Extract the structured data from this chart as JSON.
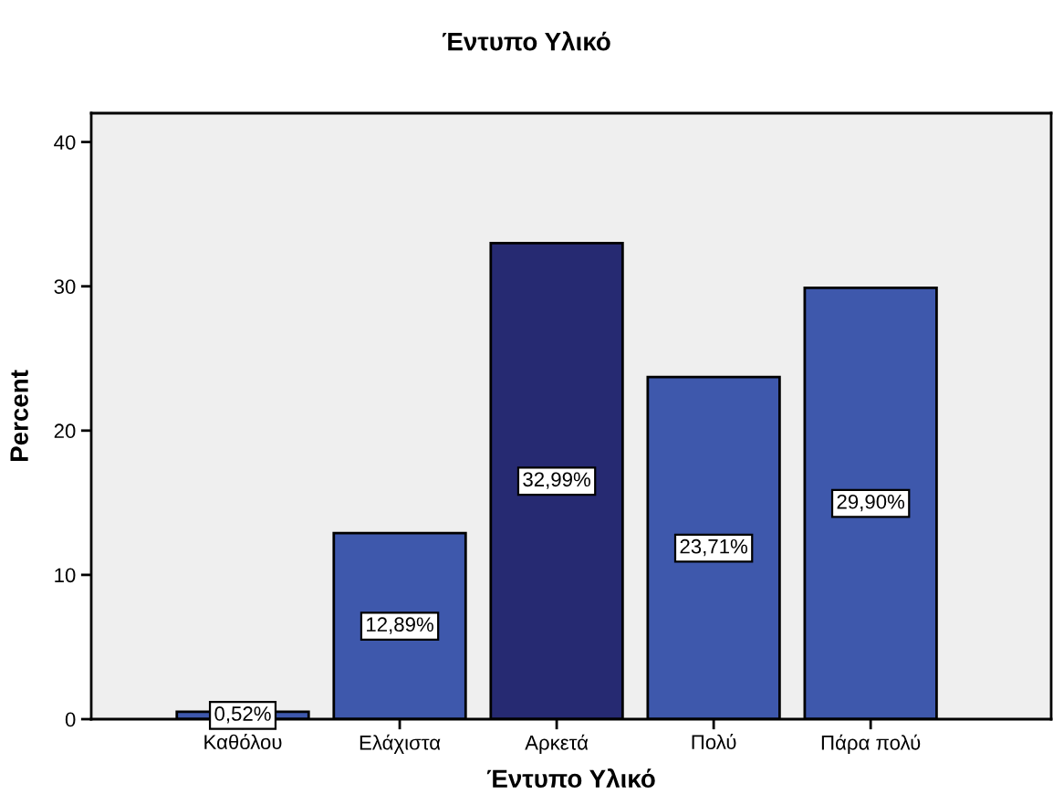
{
  "chart_data": {
    "type": "bar",
    "title": "Έντυπο Υλικό",
    "xlabel": "Έντυπο Υλικό",
    "ylabel": "Percent",
    "categories": [
      "Καθόλου",
      "Ελάχιστα",
      "Αρκετά",
      "Πολύ",
      "Πάρα πολύ"
    ],
    "values": [
      0.52,
      12.89,
      32.99,
      23.71,
      29.9
    ],
    "value_labels": [
      "0,52%",
      "12,89%",
      "32,99%",
      "23,71%",
      "29,90%"
    ],
    "colors": [
      "#3e58ac",
      "#3e58ac",
      "#262a72",
      "#3e58ac",
      "#3e58ac"
    ],
    "ylim": [
      0,
      42
    ],
    "yticks": [
      0,
      10,
      20,
      30,
      40
    ],
    "grid": false,
    "legend": false
  }
}
